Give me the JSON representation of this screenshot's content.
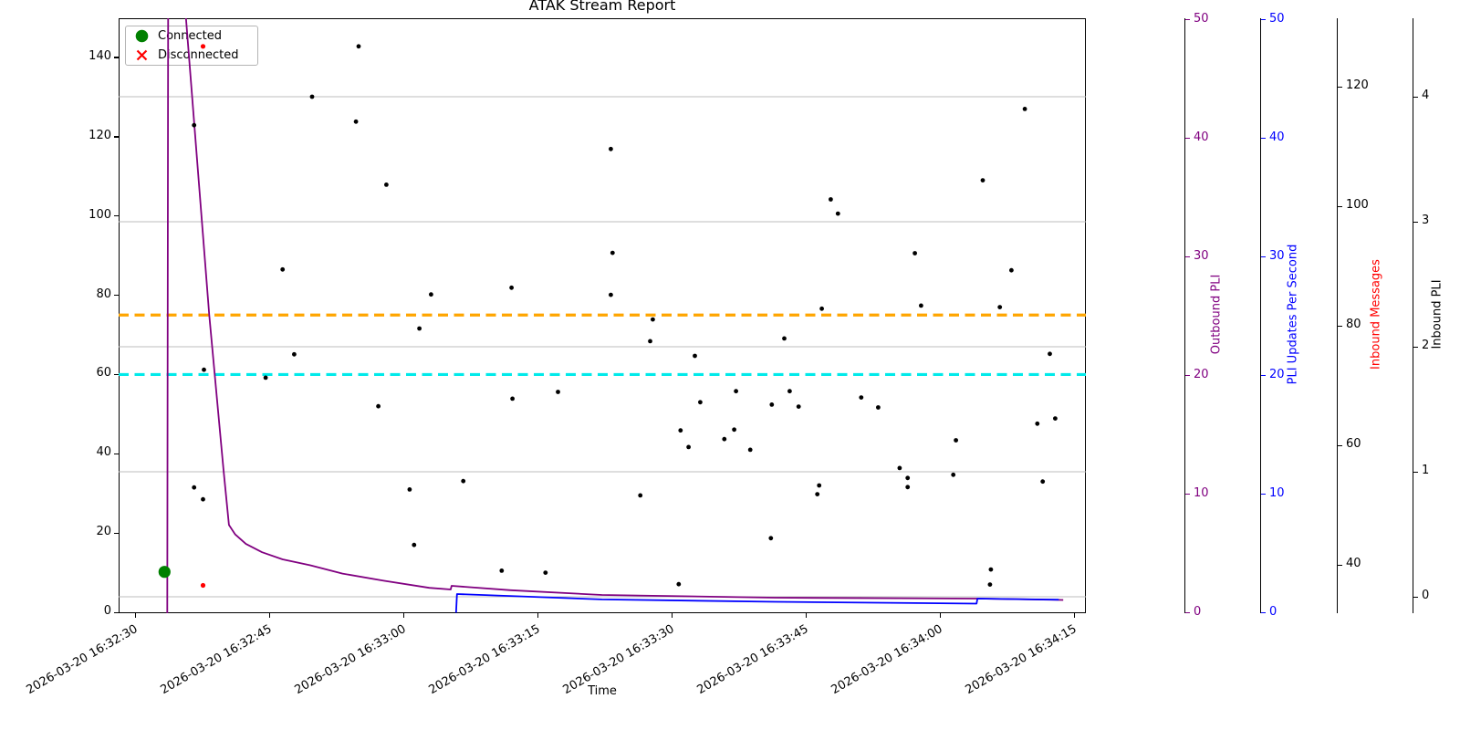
{
  "title": "ATAK Stream Report",
  "xlabel": "Time",
  "legend": {
    "connected": "Connected",
    "disconnected": "Disconnected"
  },
  "colors": {
    "outbound_line": "#800080",
    "updates_line": "#0000ff",
    "threshold_orange": "#ffa500",
    "threshold_cyan": "#00eaea",
    "connected_green": "#008000",
    "disconnected_red": "#ff0000",
    "scatter_black": "#000000",
    "gridline_grey": "#bdbdbd"
  },
  "left_axis": {
    "ticks": [
      0,
      20,
      40,
      60,
      80,
      100,
      120,
      140
    ]
  },
  "x_axis": {
    "tick_labels": [
      "2026-03-20 16:32:30",
      "2026-03-20 16:32:45",
      "2026-03-20 16:33:00",
      "2026-03-20 16:33:15",
      "2026-03-20 16:33:30",
      "2026-03-20 16:33:45",
      "2026-03-20 16:34:00",
      "2026-03-20 16:34:15"
    ],
    "tick_seconds": [
      0,
      15,
      30,
      45,
      60,
      75,
      90,
      105
    ]
  },
  "right_axes": [
    {
      "id": "outbound",
      "label": "Outbound PLI",
      "label_color": "#800080",
      "tick_color": "#800080",
      "ticks": [
        0,
        10,
        20,
        30,
        40,
        50
      ]
    },
    {
      "id": "updates",
      "label": "PLI Updates Per Second",
      "label_color": "#0000ff",
      "tick_color": "#0000ff",
      "ticks": [
        0,
        10,
        20,
        30,
        40,
        50
      ]
    },
    {
      "id": "messages",
      "label": "Inbound Messages",
      "label_color": "#ff0000",
      "tick_color": "#000000",
      "ticks": [
        40,
        60,
        80,
        100,
        120
      ]
    },
    {
      "id": "inbound_pli",
      "label": "Inbound PLI",
      "label_color": "#000000",
      "tick_color": "#000000",
      "ticks": [
        0,
        1,
        2,
        3,
        4
      ]
    }
  ],
  "chart_data": {
    "type": "line+scatter",
    "title": "ATAK Stream Report",
    "xlabel": "Time",
    "time_origin": "2026-03-20 16:32:30",
    "x_unit": "seconds after time_origin",
    "axis_ranges": {
      "left": [
        0,
        152
      ],
      "outbound": [
        0,
        50
      ],
      "updates": [
        0,
        50
      ],
      "messages": [
        32,
        132
      ],
      "inbound_pli": [
        -0.1,
        4.6
      ]
    },
    "gridlines": {
      "axis": "inbound_pli",
      "values": [
        0,
        1,
        2,
        3,
        4
      ]
    },
    "thresholds": [
      {
        "axis": "left",
        "value": 75,
        "color": "#ffa500",
        "style": "dashed"
      },
      {
        "axis": "left",
        "value": 60,
        "color": "#00eaea",
        "style": "dashed"
      }
    ],
    "series": [
      {
        "id": "outbound_pli",
        "name": "Outbound PLI",
        "axis": "outbound",
        "color": "#800080",
        "points": [
          [
            3.6,
            -0.1
          ],
          [
            3.7,
            52
          ],
          [
            5.5,
            52
          ],
          [
            8.3,
            25.1
          ],
          [
            9.9,
            12.0
          ],
          [
            10.5,
            7.4
          ],
          [
            11.2,
            6.6
          ],
          [
            12.4,
            5.8
          ],
          [
            14.2,
            5.1
          ],
          [
            16.5,
            4.5
          ],
          [
            19.6,
            4.0
          ],
          [
            23.2,
            3.3
          ],
          [
            27.8,
            2.7
          ],
          [
            32.9,
            2.1
          ],
          [
            35.3,
            1.96
          ],
          [
            35.4,
            2.27
          ],
          [
            42.0,
            1.9
          ],
          [
            52.2,
            1.5
          ],
          [
            71.6,
            1.27
          ],
          [
            94.4,
            1.19
          ],
          [
            103.8,
            1.08
          ]
        ]
      },
      {
        "id": "pli_updates",
        "name": "PLI Updates Per Second",
        "axis": "updates",
        "color": "#0000ff",
        "points": [
          [
            35.9,
            0.0
          ],
          [
            36.0,
            1.58
          ],
          [
            52.2,
            1.12
          ],
          [
            71.6,
            0.92
          ],
          [
            94.1,
            0.77
          ],
          [
            94.2,
            1.19
          ],
          [
            103.3,
            1.1
          ]
        ]
      }
    ],
    "scatter": {
      "black_points_axis": "left",
      "black_points": [
        [
          6.6,
          122.9
        ],
        [
          19.8,
          130.1
        ],
        [
          24.7,
          123.8
        ],
        [
          25.0,
          142.8
        ],
        [
          28.1,
          107.9
        ],
        [
          16.5,
          86.5
        ],
        [
          33.1,
          80.2
        ],
        [
          53.2,
          116.9
        ],
        [
          53.4,
          90.7
        ],
        [
          42.1,
          81.9
        ],
        [
          53.2,
          80.1
        ],
        [
          57.9,
          73.9
        ],
        [
          99.5,
          127.0
        ],
        [
          94.8,
          109.0
        ],
        [
          77.8,
          104.2
        ],
        [
          78.6,
          100.6
        ],
        [
          87.2,
          90.6
        ],
        [
          98.0,
          86.3
        ],
        [
          76.8,
          76.6
        ],
        [
          87.9,
          77.4
        ],
        [
          96.7,
          77.0
        ],
        [
          31.8,
          71.6
        ],
        [
          17.8,
          65.1
        ],
        [
          7.7,
          61.2
        ],
        [
          14.6,
          59.2
        ],
        [
          27.2,
          52.0
        ],
        [
          6.6,
          31.5
        ],
        [
          7.6,
          28.5
        ],
        [
          30.7,
          31.0
        ],
        [
          31.2,
          17.0
        ],
        [
          57.6,
          68.4
        ],
        [
          62.6,
          64.7
        ],
        [
          47.3,
          55.6
        ],
        [
          42.2,
          53.9
        ],
        [
          67.2,
          55.8
        ],
        [
          63.2,
          53.0
        ],
        [
          71.2,
          52.4
        ],
        [
          61.0,
          45.9
        ],
        [
          67.0,
          46.1
        ],
        [
          65.9,
          43.7
        ],
        [
          61.9,
          41.7
        ],
        [
          68.8,
          41.0
        ],
        [
          36.7,
          33.1
        ],
        [
          56.5,
          29.5
        ],
        [
          71.1,
          18.7
        ],
        [
          41.0,
          10.5
        ],
        [
          45.9,
          10.0
        ],
        [
          60.8,
          7.1
        ],
        [
          72.6,
          69.1
        ],
        [
          102.3,
          65.2
        ],
        [
          73.2,
          55.8
        ],
        [
          74.2,
          51.9
        ],
        [
          81.2,
          54.2
        ],
        [
          83.1,
          51.7
        ],
        [
          100.9,
          47.6
        ],
        [
          102.9,
          48.9
        ],
        [
          91.8,
          43.4
        ],
        [
          85.5,
          36.4
        ],
        [
          86.4,
          33.9
        ],
        [
          86.4,
          31.6
        ],
        [
          91.5,
          34.7
        ],
        [
          101.5,
          33.0
        ],
        [
          76.5,
          32.0
        ],
        [
          76.3,
          29.8
        ],
        [
          95.7,
          10.8
        ],
        [
          95.6,
          7.0
        ]
      ],
      "red_points_axis": "left",
      "red_points": [
        [
          7.6,
          6.8
        ],
        [
          7.6,
          142.8
        ]
      ],
      "connected_point_axis": "left",
      "connected_point": [
        3.3,
        10.2
      ]
    }
  }
}
